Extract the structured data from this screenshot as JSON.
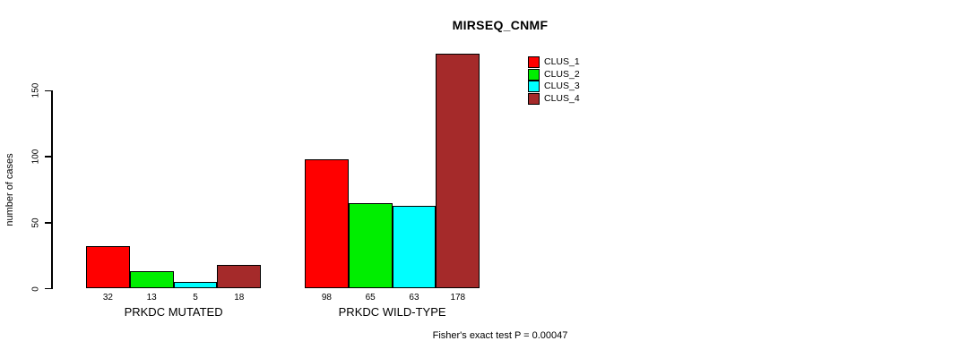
{
  "chart_data": {
    "type": "bar",
    "title": "MIRSEQ_CNMF",
    "ylabel": "number of cases",
    "xlabel": "",
    "categories": [
      "PRKDC MUTATED",
      "PRKDC WILD-TYPE"
    ],
    "series": [
      {
        "name": "CLUS_1",
        "color": "#FF0000",
        "values": [
          32,
          98
        ]
      },
      {
        "name": "CLUS_2",
        "color": "#00EE00",
        "values": [
          13,
          65
        ]
      },
      {
        "name": "CLUS_3",
        "color": "#00FFFF",
        "values": [
          5,
          63
        ]
      },
      {
        "name": "CLUS_4",
        "color": "#A52A2A",
        "values": [
          18,
          178
        ]
      }
    ],
    "bar_value_labels_shown": true,
    "yticks": [
      0,
      50,
      100,
      150
    ],
    "ylim": [
      0,
      178
    ],
    "grid": false,
    "legend_position": "inside-top-right",
    "annotation": "Fisher's exact test P = 0.00047",
    "colors": {
      "background": "#FFFFFF",
      "axis": "#000000",
      "bar_border": "#000000",
      "text": "#000000"
    }
  }
}
